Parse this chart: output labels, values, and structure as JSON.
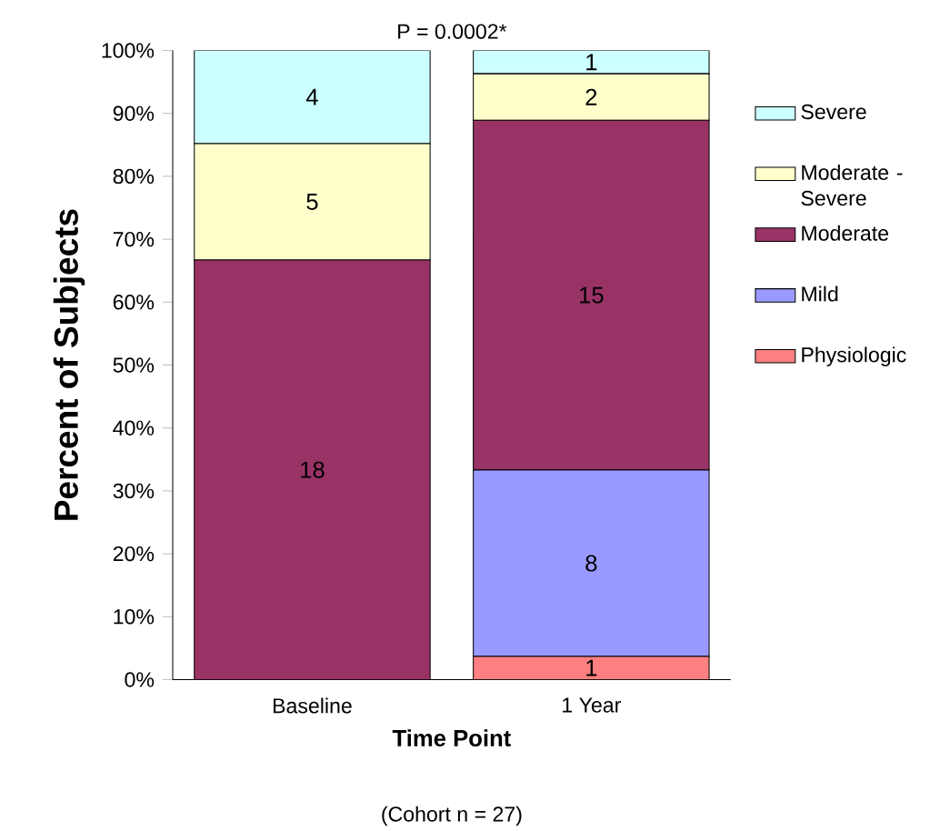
{
  "chart_data": {
    "type": "bar",
    "stacked": true,
    "ylabel": "Percent of Subjects",
    "xlabel": "Time Point",
    "annotations": [
      "P = 0.0002*",
      "(Cohort n = 27)",
      "1",
      "8",
      "18",
      "15",
      "5",
      "2",
      "4",
      "1"
    ],
    "categories": [
      "Baseline",
      "1 Year"
    ],
    "series": [
      {
        "name": "Physiologic",
        "color": "#ff8080",
        "values": [
          0,
          3.7
        ]
      },
      {
        "name": "Mild",
        "color": "#9999ff",
        "values": [
          0,
          29.6
        ]
      },
      {
        "name": "Moderate",
        "color": "#993366",
        "values": [
          66.7,
          55.6
        ]
      },
      {
        "name": "Moderate - Severe",
        "color": "#ffffcc",
        "values": [
          18.5,
          7.4
        ]
      },
      {
        "name": "Severe",
        "color": "#ccffff",
        "values": [
          14.8,
          3.7
        ]
      }
    ],
    "ylim": [
      0,
      100
    ],
    "yticks": [
      {
        "value": 0,
        "label": "0%"
      },
      {
        "value": 10,
        "label": "10%"
      },
      {
        "value": 20,
        "label": "20%"
      },
      {
        "value": 30,
        "label": "30%"
      },
      {
        "value": 40,
        "label": "40%"
      },
      {
        "value": 50,
        "label": "50%"
      },
      {
        "value": 60,
        "label": "60%"
      },
      {
        "value": 70,
        "label": "70%"
      },
      {
        "value": 80,
        "label": "80%"
      },
      {
        "value": 90,
        "label": "90%"
      },
      {
        "value": 100,
        "label": "100%"
      }
    ],
    "legend": "right"
  }
}
